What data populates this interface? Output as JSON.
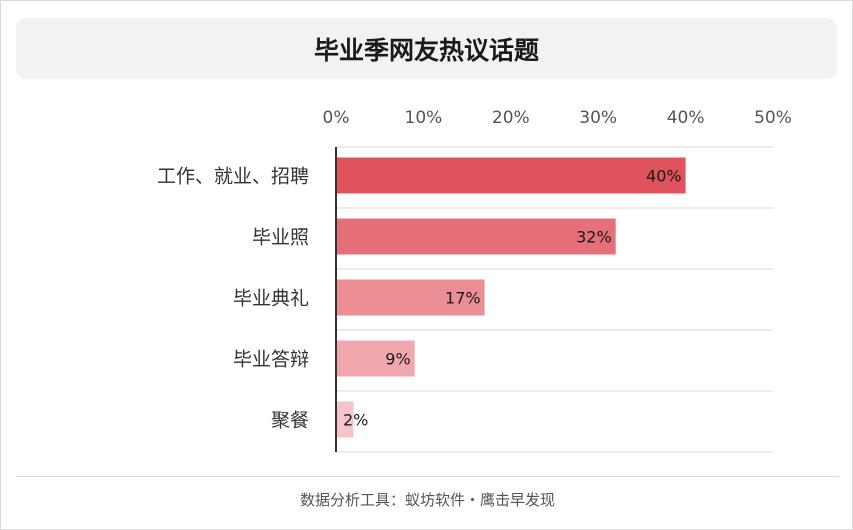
{
  "header": {
    "title": "毕业季网友热议话题"
  },
  "footer": {
    "source": "数据分析工具：蚁坊软件・鹰击早发现"
  },
  "colors": {
    "bars": [
      "#e0535c",
      "#e6707a",
      "#eb8f95",
      "#f0a8ae",
      "#f5c3c8"
    ],
    "gridline": "#d9d9d9",
    "axis": "#333333"
  },
  "chart_data": {
    "type": "bar",
    "orientation": "horizontal",
    "categories": [
      "工作、就业、招聘",
      "毕业照",
      "毕业典礼",
      "毕业答辩",
      "聚餐"
    ],
    "values": [
      40,
      32,
      17,
      9,
      2
    ],
    "value_labels": [
      "40%",
      "32%",
      "17%",
      "9%",
      "2%"
    ],
    "xlim": [
      0,
      50
    ],
    "x_ticks": [
      "0%",
      "10%",
      "20%",
      "30%",
      "40%",
      "50%"
    ],
    "x_axis_position": "top",
    "grid": true,
    "legend": "none"
  }
}
